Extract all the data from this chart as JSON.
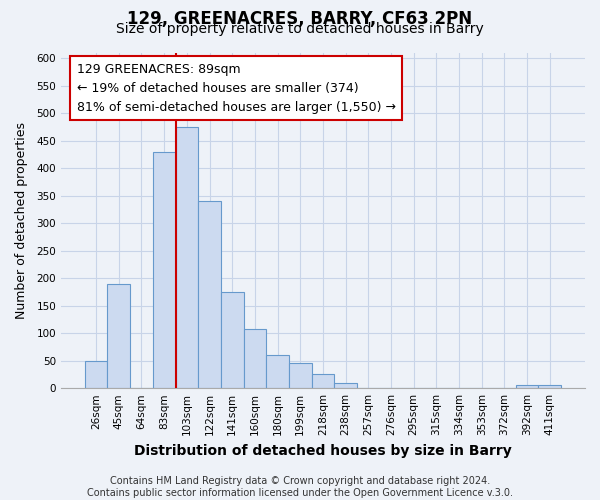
{
  "title": "129, GREENACRES, BARRY, CF63 2PN",
  "subtitle": "Size of property relative to detached houses in Barry",
  "xlabel": "Distribution of detached houses by size in Barry",
  "ylabel": "Number of detached properties",
  "bar_labels": [
    "26sqm",
    "45sqm",
    "64sqm",
    "83sqm",
    "103sqm",
    "122sqm",
    "141sqm",
    "160sqm",
    "180sqm",
    "199sqm",
    "218sqm",
    "238sqm",
    "257sqm",
    "276sqm",
    "295sqm",
    "315sqm",
    "334sqm",
    "353sqm",
    "372sqm",
    "392sqm",
    "411sqm"
  ],
  "bar_heights": [
    50,
    190,
    0,
    430,
    475,
    340,
    175,
    107,
    60,
    45,
    25,
    10,
    0,
    0,
    0,
    0,
    0,
    0,
    0,
    5,
    5
  ],
  "bar_color": "#ccdaf0",
  "bar_edge_color": "#6699cc",
  "vline_x_index": 3.5,
  "vline_color": "#cc0000",
  "annotation_line1": "129 GREENACRES: 89sqm",
  "annotation_line2": "← 19% of detached houses are smaller (374)",
  "annotation_line3": "81% of semi-detached houses are larger (1,550) →",
  "annotation_box_facecolor": "#ffffff",
  "annotation_box_edgecolor": "#cc0000",
  "ylim": [
    0,
    610
  ],
  "yticks": [
    0,
    50,
    100,
    150,
    200,
    250,
    300,
    350,
    400,
    450,
    500,
    550,
    600
  ],
  "grid_color": "#c8d4e8",
  "background_color": "#eef2f8",
  "footer_line1": "Contains HM Land Registry data © Crown copyright and database right 2024.",
  "footer_line2": "Contains public sector information licensed under the Open Government Licence v.3.0.",
  "title_fontsize": 12,
  "subtitle_fontsize": 10,
  "xlabel_fontsize": 10,
  "ylabel_fontsize": 9,
  "tick_fontsize": 7.5,
  "annotation_fontsize": 9,
  "footer_fontsize": 7
}
